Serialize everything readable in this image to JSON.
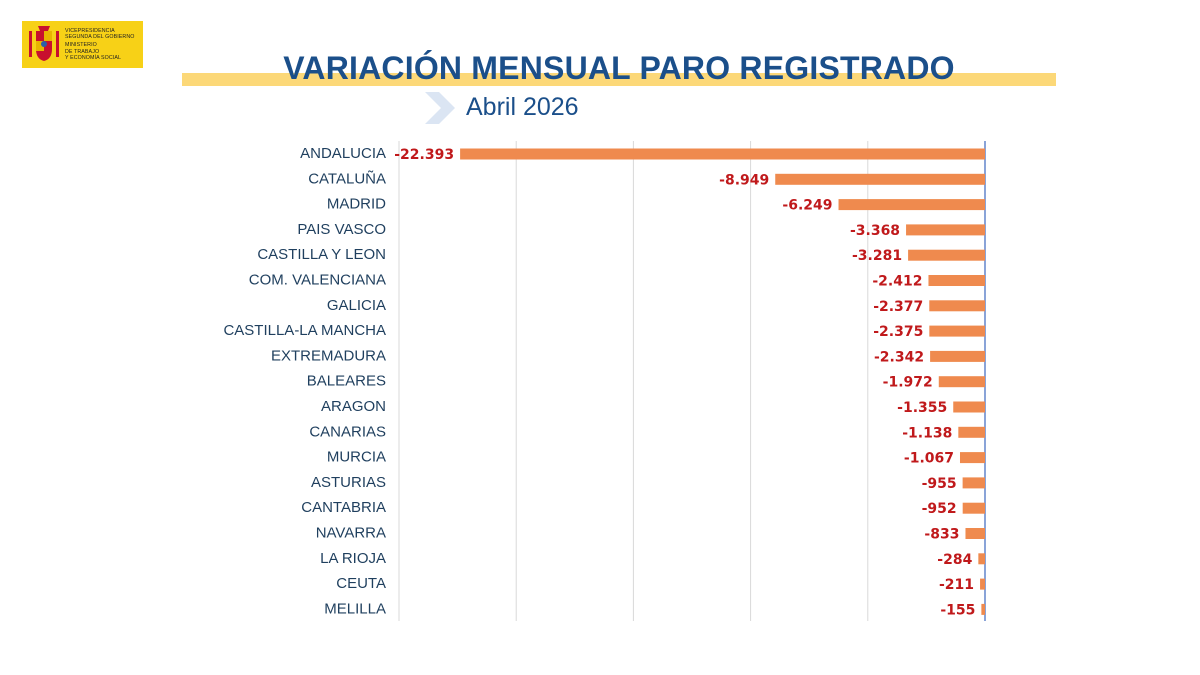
{
  "header": {
    "logo_lines": [
      "VICEPRESIDENCIA",
      "SEGUNDA DEL GOBIERNO",
      "MINISTERIO",
      "DE TRABAJO",
      "Y ECONOMÍA SOCIAL"
    ],
    "title": "VARIACIÓN MENSUAL PARO REGISTRADO",
    "subtitle": "Abril 2026"
  },
  "colors": {
    "title": "#1b4f8a",
    "highlight": "#fcd878",
    "bar": "#ef8a4e",
    "value_label": "#c0191b",
    "gridline": "#d9d9d9",
    "axis": "#4a72c4"
  },
  "chart_data": {
    "type": "bar",
    "orientation": "horizontal",
    "categories": [
      "ANDALUCIA",
      "CATALUÑA",
      "MADRID",
      "PAIS VASCO",
      "CASTILLA Y LEON",
      "COM. VALENCIANA",
      "GALICIA",
      "CASTILLA-LA MANCHA",
      "EXTREMADURA",
      "BALEARES",
      "ARAGON",
      "CANARIAS",
      "MURCIA",
      "ASTURIAS",
      "CANTABRIA",
      "NAVARRA",
      "LA RIOJA",
      "CEUTA",
      "MELILLA"
    ],
    "values": [
      -22393,
      -8949,
      -6249,
      -3368,
      -3281,
      -2412,
      -2377,
      -2375,
      -2342,
      -1972,
      -1355,
      -1138,
      -1067,
      -955,
      -952,
      -833,
      -284,
      -211,
      -155
    ],
    "value_labels": [
      "-22.393",
      "-8.949",
      "-6.249",
      "-3.368",
      "-3.281",
      "-2.412",
      "-2.377",
      "-2.375",
      "-2.342",
      "-1.972",
      "-1.355",
      "-1.138",
      "-1.067",
      "-955",
      "-952",
      "-833",
      "-284",
      "-211",
      "-155"
    ],
    "xlim": [
      -25000,
      0
    ],
    "grid": true,
    "title": "",
    "xlabel": "",
    "ylabel": ""
  }
}
